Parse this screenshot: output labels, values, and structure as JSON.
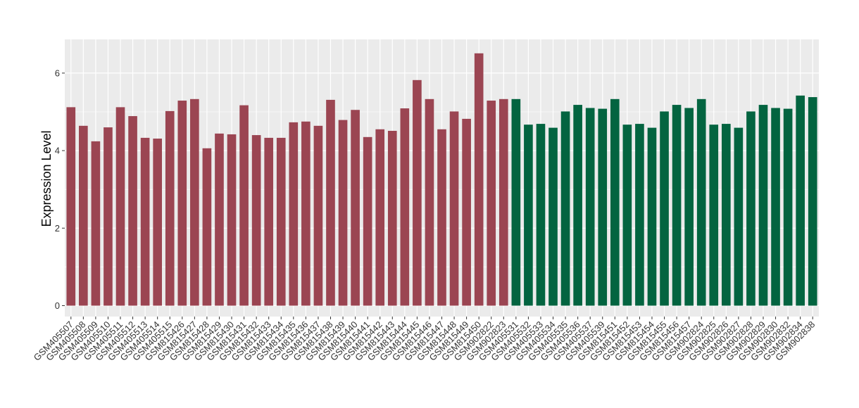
{
  "chart_data": {
    "type": "bar",
    "title": "",
    "xlabel": "",
    "ylabel": "Expression Level",
    "ylim": [
      0,
      6.8
    ],
    "yticks": [
      0,
      2,
      4,
      6
    ],
    "grid": true,
    "legend": "none",
    "colors": {
      "panel_bg": "#ebebeb",
      "grid": "#ffffff",
      "group1": "#9b4552",
      "group2": "#036440"
    },
    "categories": [
      "GSM405507",
      "GSM405508",
      "GSM405509",
      "GSM405510",
      "GSM405511",
      "GSM405512",
      "GSM405513",
      "GSM405514",
      "GSM405515",
      "GSM815426",
      "GSM815427",
      "GSM815428",
      "GSM815429",
      "GSM815430",
      "GSM815431",
      "GSM815432",
      "GSM815433",
      "GSM815434",
      "GSM815435",
      "GSM815436",
      "GSM815437",
      "GSM815438",
      "GSM815439",
      "GSM815440",
      "GSM815441",
      "GSM815442",
      "GSM815443",
      "GSM815444",
      "GSM815445",
      "GSM815446",
      "GSM815447",
      "GSM815448",
      "GSM815449",
      "GSM815450",
      "GSM902822",
      "GSM902823",
      "GSM405531",
      "GSM405532",
      "GSM405533",
      "GSM405534",
      "GSM405535",
      "GSM405536",
      "GSM405537",
      "GSM405539",
      "GSM815451",
      "GSM815452",
      "GSM815453",
      "GSM815454",
      "GSM815455",
      "GSM815456",
      "GSM815457",
      "GSM902824",
      "GSM902825",
      "GSM902826",
      "GSM902827",
      "GSM902828",
      "GSM902829",
      "GSM902830",
      "GSM902832",
      "GSM902834",
      "GSM902838"
    ],
    "values": [
      5.12,
      4.64,
      4.24,
      4.6,
      5.12,
      4.89,
      4.33,
      4.31,
      5.02,
      5.29,
      5.33,
      4.06,
      4.44,
      4.42,
      5.17,
      4.4,
      4.33,
      4.33,
      4.73,
      4.75,
      4.64,
      5.31,
      4.79,
      5.05,
      4.35,
      4.55,
      4.51,
      5.09,
      5.82,
      5.33,
      4.55,
      5.01,
      4.82,
      6.51,
      5.29,
      5.33,
      5.33,
      4.67,
      4.69,
      4.59,
      5.01,
      5.18,
      5.1,
      5.08,
      5.33,
      4.67,
      4.69,
      4.59,
      5.01,
      5.18,
      5.1,
      5.33,
      4.67,
      4.69,
      4.59,
      5.01,
      5.18,
      5.1,
      5.08,
      5.42,
      5.38
    ],
    "group_split": 36
  }
}
